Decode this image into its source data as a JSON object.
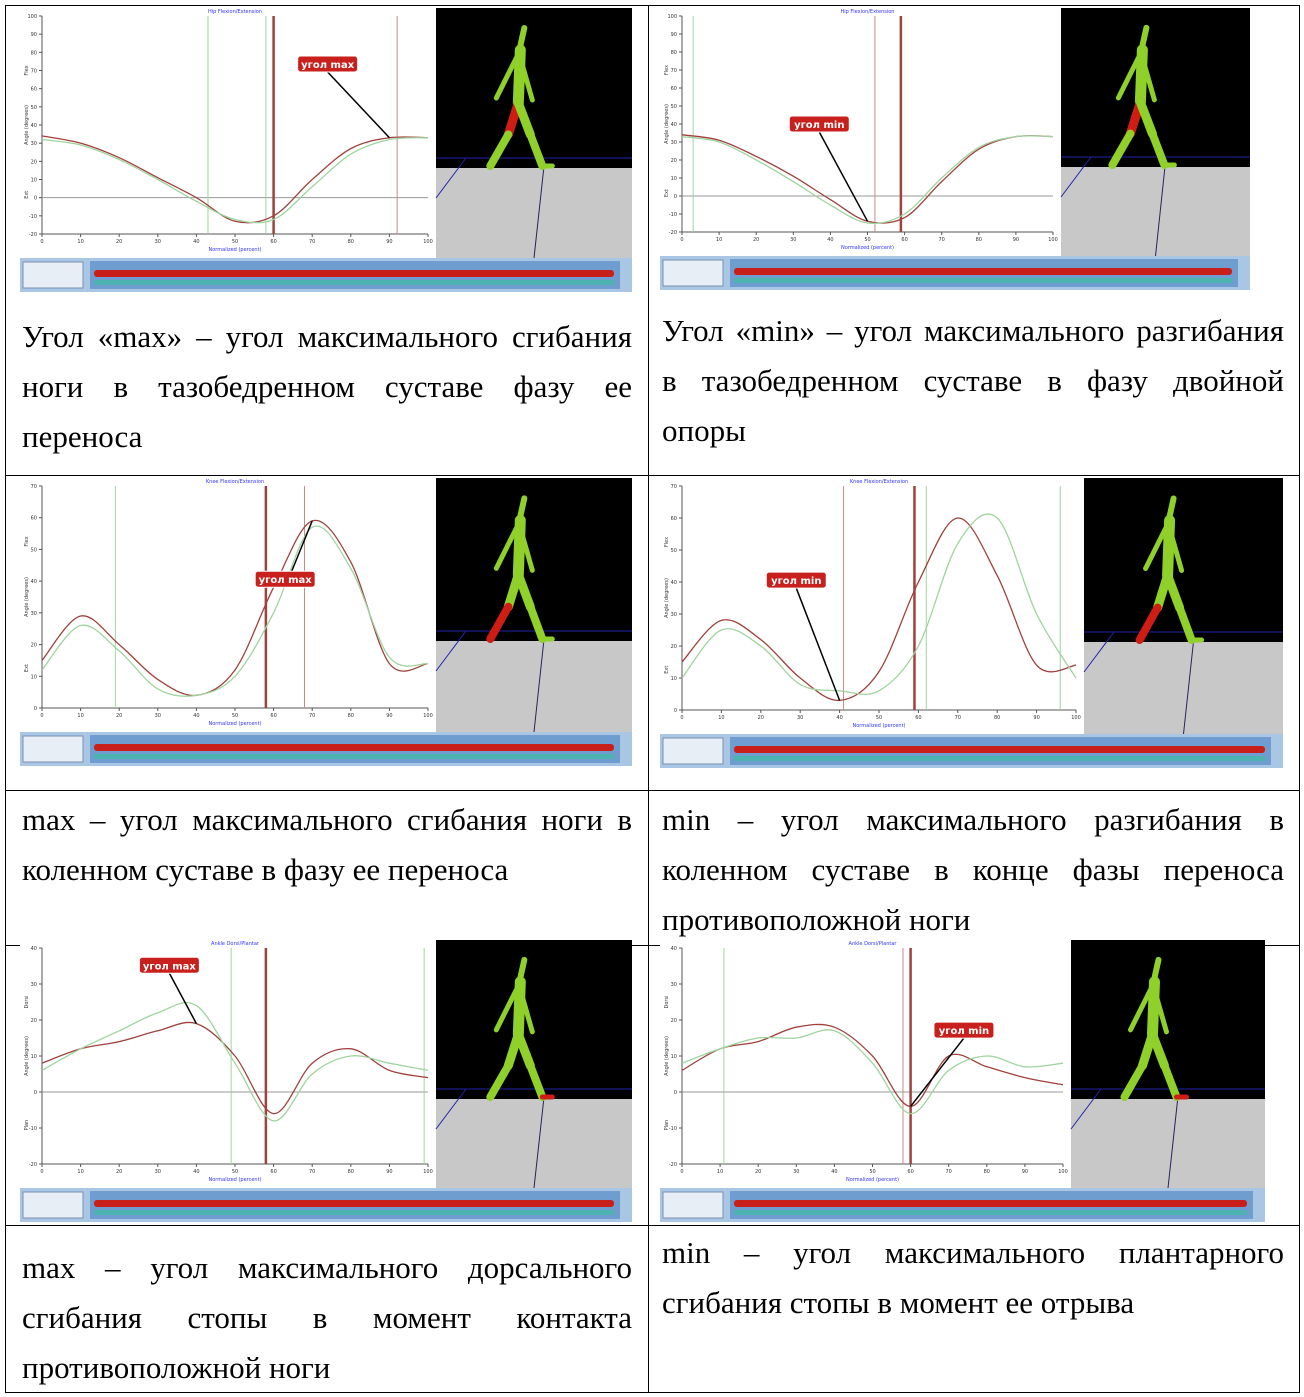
{
  "table": {
    "rows": [
      {
        "cells": [
          {
            "image": {
              "title": "Hip Flexion/Extension",
              "y_label": "Angle (degrees)",
              "x_label": "Normalized (percent)",
              "y_top_label": "Flex",
              "y_bottom_label": "Ext",
              "xlim": [
                0,
                100
              ],
              "ylim": [
                -20,
                100
              ],
              "xticks": [
                0,
                10,
                20,
                30,
                40,
                50,
                60,
                70,
                80,
                90,
                100
              ],
              "yticks": [
                -20,
                -10,
                0,
                10,
                20,
                30,
                40,
                50,
                60,
                70,
                80,
                90,
                100
              ],
              "x": [
                0,
                10,
                20,
                30,
                40,
                50,
                60,
                70,
                80,
                90,
                100
              ],
              "series": [
                {
                  "color": "#a0413c",
                  "values": [
                    34,
                    30,
                    22,
                    11,
                    0,
                    -13,
                    -10,
                    10,
                    27,
                    33,
                    33
                  ]
                },
                {
                  "color": "#9ed49e",
                  "values": [
                    32,
                    29,
                    21,
                    10,
                    -2,
                    -12,
                    -12,
                    6,
                    24,
                    32,
                    33
                  ]
                }
              ],
              "markers": [
                {
                  "color": "#9ed49e",
                  "x": 43
                },
                {
                  "color": "#a0413c",
                  "x": 60,
                  "style": "thick"
                },
                {
                  "color": "#9ed49e",
                  "x": 58
                },
                {
                  "color": "#c98a86",
                  "x": 92
                }
              ],
              "callout": "угол max"
            },
            "caption": "Угол «max» – угол максимального сгибания ноги в тазобедренном суставе фазу ее переноса"
          },
          {
            "image": {
              "title": "Hip Flexion/Extension",
              "y_label": "Angle (degrees)",
              "x_label": "Normalized (percent)",
              "y_top_label": "Flex",
              "y_bottom_label": "Ext",
              "xlim": [
                0,
                100
              ],
              "ylim": [
                -20,
                100
              ],
              "xticks": [
                0,
                10,
                20,
                30,
                40,
                50,
                60,
                70,
                80,
                90,
                100
              ],
              "yticks": [
                -20,
                -10,
                0,
                10,
                20,
                30,
                40,
                50,
                60,
                70,
                80,
                90,
                100
              ],
              "x": [
                0,
                10,
                20,
                30,
                40,
                50,
                60,
                70,
                80,
                90,
                100
              ],
              "series": [
                {
                  "color": "#a0413c",
                  "values": [
                    34,
                    31,
                    22,
                    11,
                    -2,
                    -14,
                    -12,
                    8,
                    26,
                    33,
                    33
                  ]
                },
                {
                  "color": "#9ed49e",
                  "values": [
                    33,
                    30,
                    20,
                    8,
                    -5,
                    -15,
                    -10,
                    10,
                    27,
                    33,
                    33
                  ]
                }
              ],
              "markers": [
                {
                  "color": "#9ed49e",
                  "x": 3
                },
                {
                  "color": "#c98a86",
                  "x": 52
                },
                {
                  "color": "#a0413c",
                  "x": 59,
                  "style": "thick"
                }
              ],
              "callout": "угол min"
            },
            "caption": "Угол «min» – угол максимального разгибания в тазобедренном суставе в фазу двойной опоры"
          }
        ]
      },
      {
        "cells": [
          {
            "image": {
              "title": "Knee Flexion/Extension",
              "y_label": "Angle (degrees)",
              "x_label": "Normalized (percent)",
              "y_top_label": "Flex",
              "y_bottom_label": "Ext",
              "xlim": [
                0,
                100
              ],
              "ylim": [
                0,
                70
              ],
              "xticks": [
                0,
                10,
                20,
                30,
                40,
                50,
                60,
                70,
                80,
                90,
                100
              ],
              "yticks": [
                0,
                10,
                20,
                30,
                40,
                50,
                60,
                70
              ],
              "x": [
                0,
                10,
                20,
                30,
                40,
                50,
                60,
                70,
                80,
                90,
                100
              ],
              "series": [
                {
                  "color": "#a0413c",
                  "values": [
                    15,
                    29,
                    20,
                    9,
                    4,
                    12,
                    38,
                    59,
                    46,
                    14,
                    14
                  ]
                },
                {
                  "color": "#9ed49e",
                  "values": [
                    12,
                    26,
                    18,
                    6,
                    4,
                    10,
                    30,
                    57,
                    44,
                    16,
                    14
                  ]
                }
              ],
              "markers": [
                {
                  "color": "#9ed49e",
                  "x": 19
                },
                {
                  "color": "#a0413c",
                  "x": 58,
                  "style": "thick"
                },
                {
                  "color": "#c98a86",
                  "x": 68
                }
              ],
              "callout": "угол max"
            },
            "caption": "max – угол максимального сгибания ноги в коленном суставе в фазу ее переноса"
          },
          {
            "image": {
              "title": "Knee Flexion/Extension",
              "y_label": "Angle (degrees)",
              "x_label": "Normalized (percent)",
              "y_top_label": "Flex",
              "y_bottom_label": "Ext",
              "xlim": [
                0,
                100
              ],
              "ylim": [
                0,
                70
              ],
              "xticks": [
                0,
                10,
                20,
                30,
                40,
                50,
                60,
                70,
                80,
                90,
                100
              ],
              "yticks": [
                0,
                10,
                20,
                30,
                40,
                50,
                60,
                70
              ],
              "x": [
                0,
                10,
                20,
                30,
                40,
                50,
                60,
                70,
                80,
                90,
                100
              ],
              "series": [
                {
                  "color": "#a0413c",
                  "values": [
                    15,
                    28,
                    22,
                    10,
                    3,
                    12,
                    40,
                    60,
                    42,
                    14,
                    14
                  ]
                },
                {
                  "color": "#9ed49e",
                  "values": [
                    10,
                    25,
                    20,
                    8,
                    6,
                    6,
                    20,
                    52,
                    60,
                    30,
                    10
                  ]
                }
              ],
              "markers": [
                {
                  "color": "#c98a86",
                  "x": 41
                },
                {
                  "color": "#a0413c",
                  "x": 59,
                  "style": "thick"
                },
                {
                  "color": "#9ed49e",
                  "x": 62
                },
                {
                  "color": "#9ed49e",
                  "x": 96
                }
              ],
              "callout": "угол min"
            },
            "caption": "min – угол максимального разгибания в коленном суставе в конце фазы переноса противоположной ноги"
          }
        ]
      },
      {
        "cells": [
          {
            "image": {
              "title": "Ankle Dorsi/Plantar",
              "y_label": "Angle (degrees)",
              "x_label": "Normalized (percent)",
              "y_top_label": "Dorsi",
              "y_bottom_label": "Plan",
              "xlim": [
                0,
                100
              ],
              "ylim": [
                -20,
                40
              ],
              "xticks": [
                0,
                10,
                20,
                30,
                40,
                50,
                60,
                70,
                80,
                90,
                100
              ],
              "yticks": [
                -20,
                -10,
                0,
                10,
                20,
                30,
                40
              ],
              "x": [
                0,
                10,
                20,
                30,
                40,
                50,
                60,
                70,
                80,
                90,
                100
              ],
              "series": [
                {
                  "color": "#a0413c",
                  "values": [
                    8,
                    12,
                    14,
                    17,
                    19,
                    10,
                    -6,
                    8,
                    12,
                    6,
                    4
                  ]
                },
                {
                  "color": "#9ed49e",
                  "values": [
                    6,
                    12,
                    17,
                    22,
                    24,
                    8,
                    -8,
                    5,
                    10,
                    8,
                    6
                  ]
                }
              ],
              "markers": [
                {
                  "color": "#9ed49e",
                  "x": 49
                },
                {
                  "color": "#a0413c",
                  "x": 58,
                  "style": "thick"
                },
                {
                  "color": "#9ed49e",
                  "x": 99
                }
              ],
              "callout": "угол max"
            },
            "caption": "max – угол максимального дорсального сгибания стопы в момент контакта противоположной ноги"
          },
          {
            "image": {
              "title": "Ankle Dorsi/Plantar",
              "y_label": "Angle (degrees)",
              "x_label": "Normalized (percent)",
              "y_top_label": "Dorsi",
              "y_bottom_label": "Plan",
              "xlim": [
                0,
                100
              ],
              "ylim": [
                -20,
                40
              ],
              "xticks": [
                0,
                10,
                20,
                30,
                40,
                50,
                60,
                70,
                80,
                90,
                100
              ],
              "yticks": [
                -20,
                -10,
                0,
                10,
                20,
                30,
                40
              ],
              "x": [
                0,
                10,
                20,
                30,
                40,
                50,
                60,
                70,
                80,
                90,
                100
              ],
              "series": [
                {
                  "color": "#a0413c",
                  "values": [
                    6,
                    12,
                    14,
                    18,
                    18,
                    10,
                    -4,
                    10,
                    7,
                    4,
                    2
                  ]
                },
                {
                  "color": "#9ed49e",
                  "values": [
                    8,
                    12,
                    15,
                    15,
                    17,
                    8,
                    -6,
                    6,
                    10,
                    7,
                    8
                  ]
                }
              ],
              "markers": [
                {
                  "color": "#9ed49e",
                  "x": 11
                },
                {
                  "color": "#c98a86",
                  "x": 58
                },
                {
                  "color": "#a0413c",
                  "x": 60,
                  "style": "thick"
                }
              ],
              "callout": "угол min"
            },
            "caption": "min – угол максимального плантарного сгибания стопы в момент ее отрыва"
          }
        ]
      }
    ]
  }
}
